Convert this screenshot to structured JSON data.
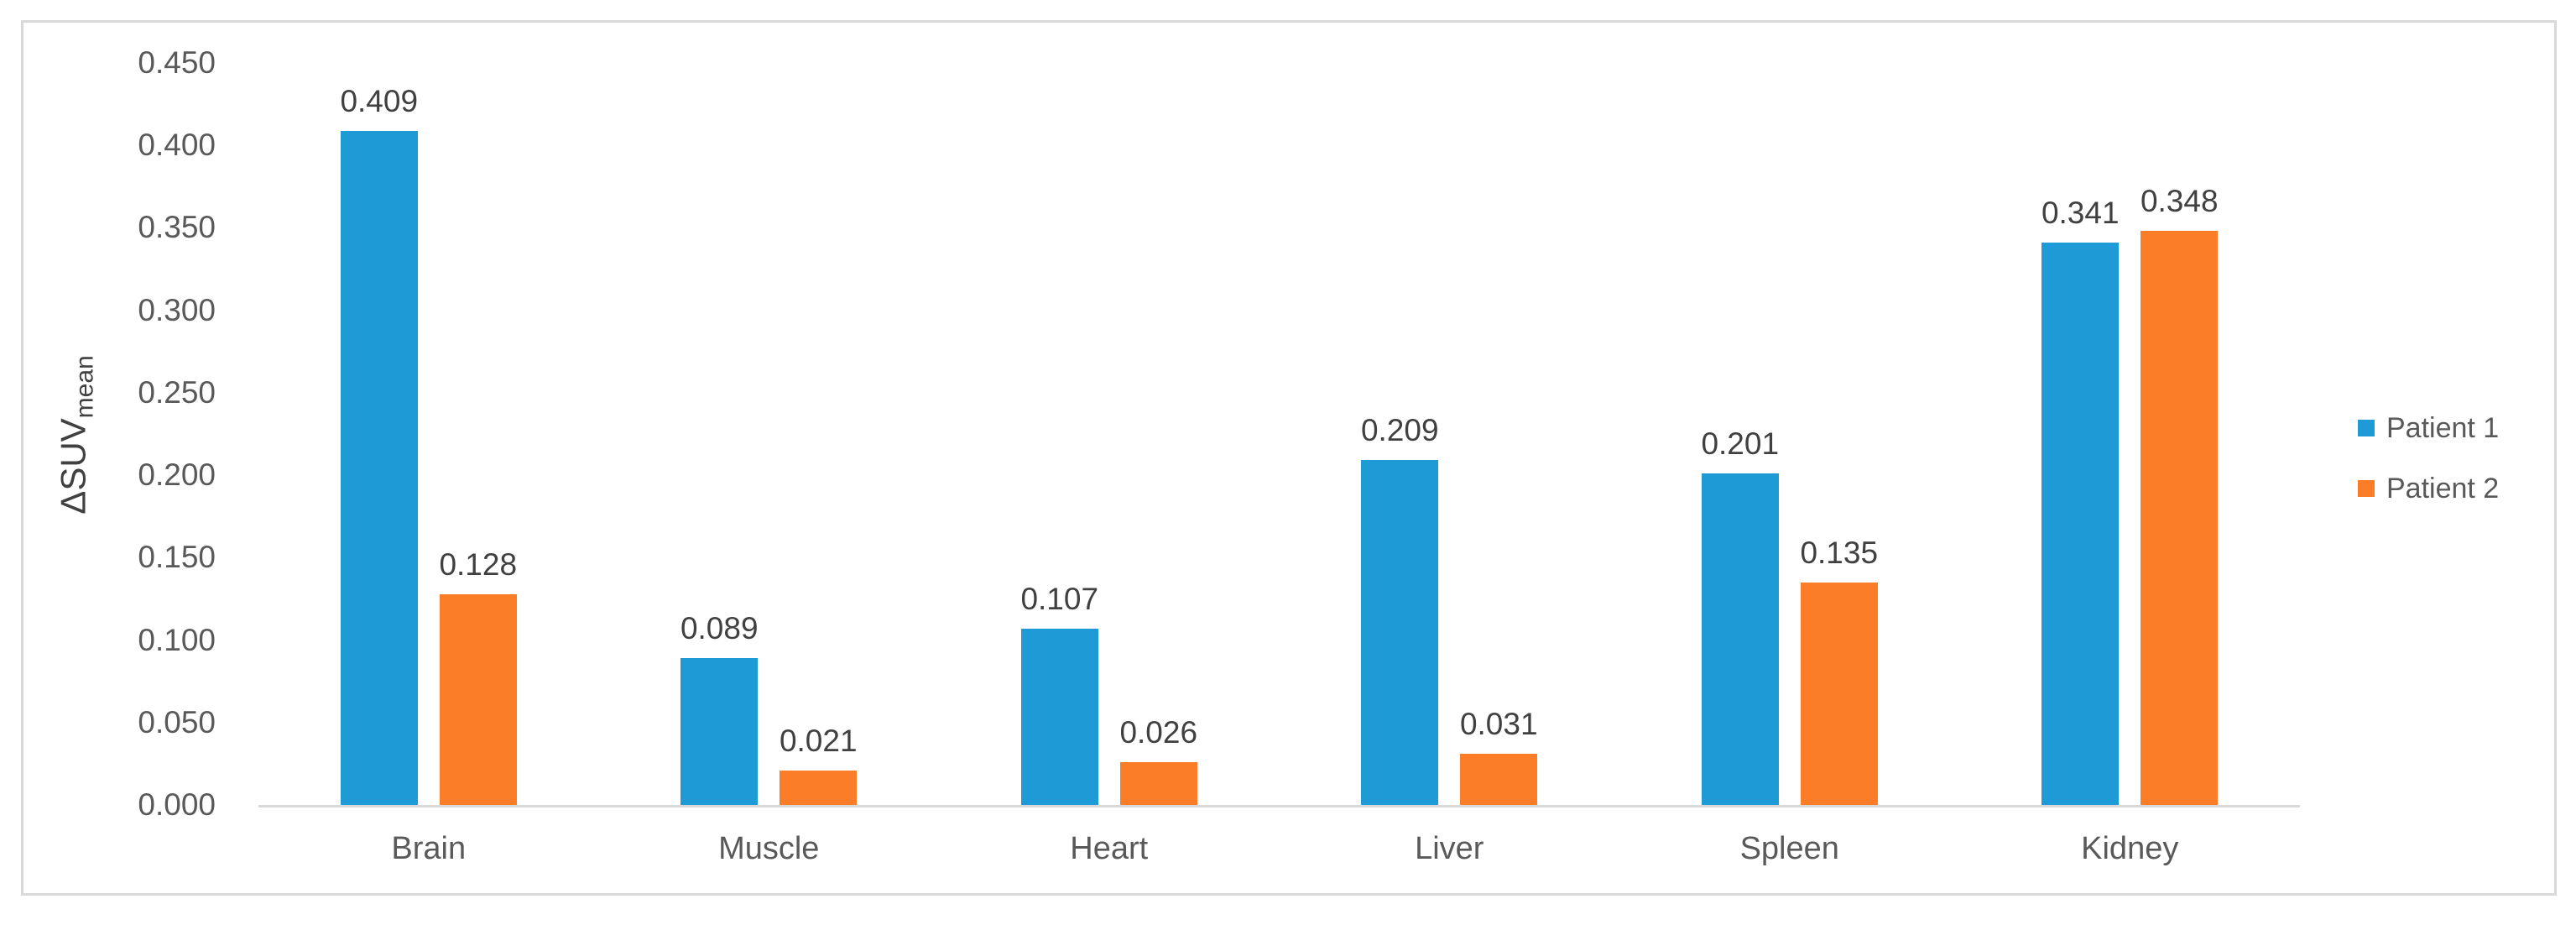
{
  "chart_data": {
    "type": "bar",
    "title": "",
    "xlabel": "",
    "ylabel": "ΔSUVmean",
    "ylabel_base": "ΔSUV",
    "ylabel_sub": "mean",
    "categories": [
      "Brain",
      "Muscle",
      "Heart",
      "Liver",
      "Spleen",
      "Kidney"
    ],
    "series": [
      {
        "name": "Patient 1",
        "color": "#1E9AD6",
        "values": [
          0.409,
          0.089,
          0.107,
          0.209,
          0.201,
          0.341
        ]
      },
      {
        "name": "Patient 2",
        "color": "#FB7D28",
        "values": [
          0.128,
          0.021,
          0.026,
          0.031,
          0.135,
          0.348
        ]
      }
    ],
    "data_labels_decimals": 3,
    "y_ticks": [
      "0.000",
      "0.050",
      "0.100",
      "0.150",
      "0.200",
      "0.250",
      "0.300",
      "0.350",
      "0.400",
      "0.450"
    ],
    "ylim": [
      0,
      0.45
    ],
    "grid": false,
    "legend_position": "right-middle",
    "legend_entries": [
      "Patient 1",
      "Patient 2"
    ]
  },
  "colors": {
    "series_patient_1": "#1E9AD6",
    "series_patient_2": "#FB7D28",
    "axis_line": "#D9D9D9",
    "chart_border": "#D9D9D9",
    "tick_text": "#595959",
    "category_text": "#595959",
    "legend_text": "#595959",
    "data_label_text": "#404040",
    "axis_title_text": "#404040"
  }
}
